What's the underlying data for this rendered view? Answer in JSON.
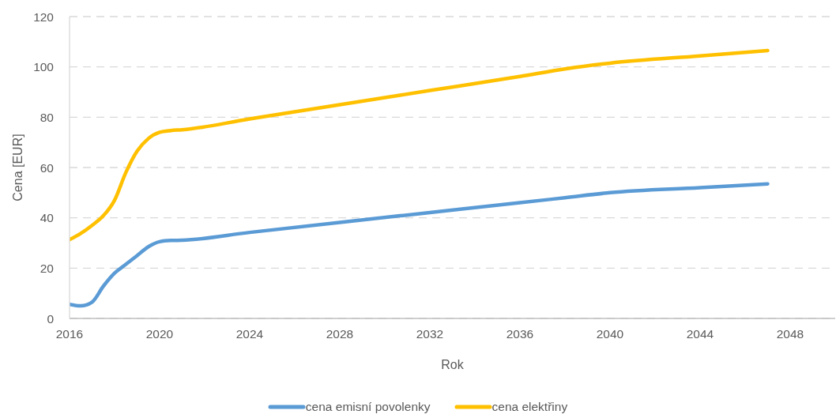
{
  "chart_data": {
    "type": "line",
    "xlabel": "Rok",
    "ylabel": "Cena [EUR]",
    "x": [
      2016,
      2016.5,
      2017,
      2017.5,
      2018,
      2018.5,
      2019,
      2019.5,
      2020,
      2020.5,
      2021,
      2024,
      2028,
      2032,
      2036,
      2038,
      2040,
      2044,
      2047
    ],
    "series": [
      {
        "name": "cena emisní povolenky",
        "color": "#5b9bd5",
        "values": [
          5.6,
          5.0,
          6.5,
          12.8,
          18,
          21.5,
          25,
          28.5,
          30.5,
          31,
          31.1,
          34.2,
          38.2,
          42.1,
          46,
          48,
          50,
          52,
          53.5
        ]
      },
      {
        "name": "cena elektřiny",
        "color": "#ffc000",
        "values": [
          31.3,
          33.8,
          37,
          40.8,
          47,
          58,
          66.5,
          71.5,
          74,
          74.7,
          75,
          79.3,
          85,
          90.6,
          96.2,
          99.2,
          101.5,
          104.4,
          106.5
        ]
      }
    ],
    "xlim": [
      2016,
      2050
    ],
    "xticks": [
      2016,
      2020,
      2024,
      2028,
      2032,
      2036,
      2040,
      2044,
      2048
    ],
    "ylim": [
      0,
      120
    ],
    "yticks": [
      0,
      20,
      40,
      60,
      80,
      100,
      120
    ],
    "grid": "y",
    "legend": "bottom"
  }
}
